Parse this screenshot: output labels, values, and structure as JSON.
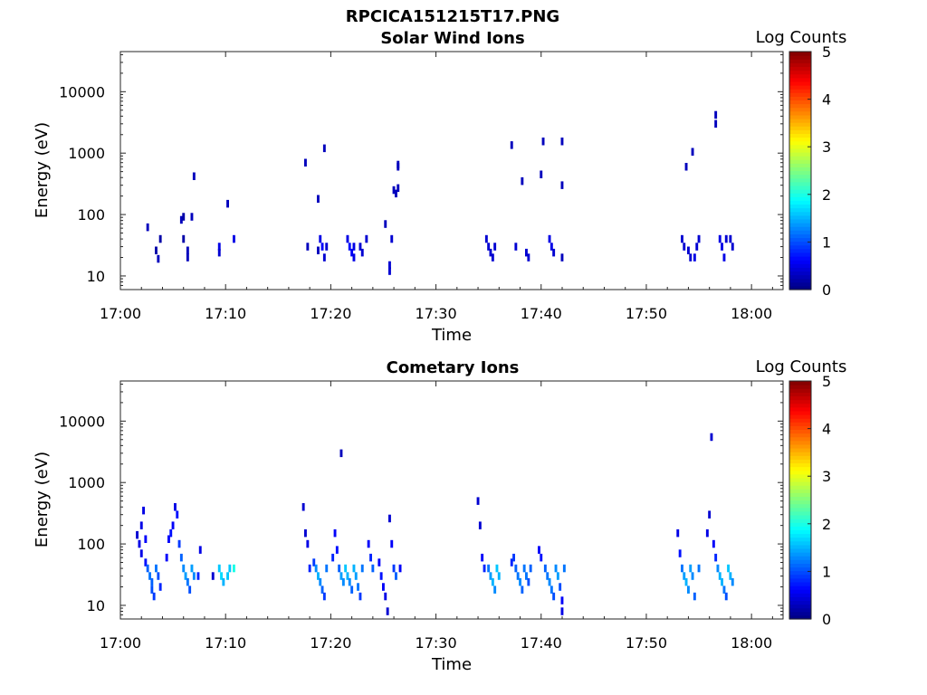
{
  "figure_title": "RPCICA151215T17.PNG",
  "chart_data": [
    {
      "type": "heatmap",
      "title": "Solar Wind Ions",
      "xlabel": "Time",
      "ylabel": "Energy (eV)",
      "x_ticks": [
        "17:00",
        "17:10",
        "17:20",
        "17:30",
        "17:40",
        "17:50",
        "18:00"
      ],
      "y_ticks": [
        "10",
        "100",
        "1000",
        "10000"
      ],
      "y_scale": "log",
      "xlim": [
        "17:00",
        "18:03"
      ],
      "ylim": [
        6,
        45000
      ],
      "colorbar": {
        "label": "Log Counts",
        "ticks": [
          "0",
          "1",
          "2",
          "3",
          "4",
          "5"
        ],
        "range": [
          0,
          5
        ],
        "colormap": "jet"
      },
      "cells": [
        [
          "17:02.6",
          62,
          0.3
        ],
        [
          "17:03.4",
          26,
          0.2
        ],
        [
          "17:03.6",
          19,
          0.3
        ],
        [
          "17:03.8",
          40,
          0.2
        ],
        [
          "17:05.8",
          82,
          0.3
        ],
        [
          "17:06.0",
          92,
          0.2
        ],
        [
          "17:06.0",
          40,
          0.2
        ],
        [
          "17:06.4",
          26,
          0.3
        ],
        [
          "17:06.4",
          20,
          0.3
        ],
        [
          "17:06.8",
          92,
          0.3
        ],
        [
          "17:07.0",
          420,
          0.3
        ],
        [
          "17:09.4",
          30,
          0.5
        ],
        [
          "17:09.4",
          24,
          0.4
        ],
        [
          "17:10.2",
          150,
          0.3
        ],
        [
          "17:10.8",
          40,
          0.5
        ],
        [
          "17:17.6",
          700,
          0.3
        ],
        [
          "17:17.8",
          30,
          0.3
        ],
        [
          "17:18.8",
          180,
          0.3
        ],
        [
          "17:18.8",
          26,
          0.3
        ],
        [
          "17:19.0",
          40,
          0.5
        ],
        [
          "17:19.2",
          30,
          0.6
        ],
        [
          "17:19.4",
          1200,
          0.3
        ],
        [
          "17:19.4",
          20,
          0.4
        ],
        [
          "17:19.6",
          30,
          0.4
        ],
        [
          "17:21.6",
          40,
          0.5
        ],
        [
          "17:21.8",
          30,
          0.7
        ],
        [
          "17:22.0",
          24,
          0.6
        ],
        [
          "17:22.2",
          30,
          0.5
        ],
        [
          "17:22.2",
          20,
          0.5
        ],
        [
          "17:22.8",
          30,
          0.4
        ],
        [
          "17:23.0",
          24,
          0.4
        ],
        [
          "17:23.4",
          40,
          0.4
        ],
        [
          "17:25.2",
          70,
          0.3
        ],
        [
          "17:25.6",
          15,
          0.4
        ],
        [
          "17:25.6",
          12,
          0.4
        ],
        [
          "17:25.8",
          40,
          0.4
        ],
        [
          "17:26.0",
          250,
          0.3
        ],
        [
          "17:26.2",
          220,
          0.3
        ],
        [
          "17:26.4",
          270,
          0.3
        ],
        [
          "17:26.4",
          650,
          0.3
        ],
        [
          "17:26.4",
          600,
          0.3
        ],
        [
          "17:34.8",
          40,
          0.4
        ],
        [
          "17:35.0",
          30,
          0.4
        ],
        [
          "17:35.2",
          24,
          0.4
        ],
        [
          "17:35.4",
          20,
          0.4
        ],
        [
          "17:35.6",
          30,
          0.4
        ],
        [
          "17:37.2",
          1350,
          0.3
        ],
        [
          "17:37.6",
          30,
          0.4
        ],
        [
          "17:38.2",
          350,
          0.3
        ],
        [
          "17:38.6",
          24,
          0.4
        ],
        [
          "17:38.8",
          20,
          0.4
        ],
        [
          "17:40.0",
          450,
          0.3
        ],
        [
          "17:40.2",
          1550,
          0.3
        ],
        [
          "17:40.8",
          40,
          0.5
        ],
        [
          "17:41.0",
          30,
          0.5
        ],
        [
          "17:41.2",
          24,
          0.4
        ],
        [
          "17:42.0",
          1550,
          0.3
        ],
        [
          "17:42.0",
          300,
          0.3
        ],
        [
          "17:42.0",
          20,
          0.3
        ],
        [
          "17:53.4",
          40,
          0.4
        ],
        [
          "17:53.6",
          30,
          0.4
        ],
        [
          "17:53.8",
          600,
          0.3
        ],
        [
          "17:54.0",
          26,
          0.4
        ],
        [
          "17:54.2",
          20,
          0.4
        ],
        [
          "17:54.4",
          1050,
          0.3
        ],
        [
          "17:54.6",
          20,
          0.5
        ],
        [
          "17:54.8",
          30,
          0.4
        ],
        [
          "17:55.0",
          40,
          0.4
        ],
        [
          "17:56.6",
          4200,
          0.3
        ],
        [
          "17:56.6",
          3000,
          0.3
        ],
        [
          "17:57.0",
          40,
          0.5
        ],
        [
          "17:57.2",
          30,
          0.5
        ],
        [
          "17:57.4",
          20,
          0.5
        ],
        [
          "17:57.6",
          40,
          0.4
        ],
        [
          "17:58.0",
          40,
          0.4
        ],
        [
          "17:58.2",
          30,
          0.4
        ]
      ]
    },
    {
      "type": "heatmap",
      "title": "Cometary Ions",
      "xlabel": "Time",
      "ylabel": "Energy (eV)",
      "x_ticks": [
        "17:00",
        "17:10",
        "17:20",
        "17:30",
        "17:40",
        "17:50",
        "18:00"
      ],
      "y_ticks": [
        "10",
        "100",
        "1000",
        "10000"
      ],
      "y_scale": "log",
      "xlim": [
        "17:00",
        "18:03"
      ],
      "ylim": [
        6,
        45000
      ],
      "colorbar": {
        "label": "Log Counts",
        "ticks": [
          "0",
          "1",
          "2",
          "3",
          "4",
          "5"
        ],
        "range": [
          0,
          5
        ],
        "colormap": "jet"
      },
      "cells": [
        [
          "17:01.6",
          140,
          0.4
        ],
        [
          "17:01.8",
          100,
          0.5
        ],
        [
          "17:02.0",
          200,
          0.5
        ],
        [
          "17:02.0",
          70,
          0.5
        ],
        [
          "17:02.2",
          350,
          0.5
        ],
        [
          "17:02.4",
          120,
          0.6
        ],
        [
          "17:02.4",
          50,
          0.7
        ],
        [
          "17:02.6",
          40,
          1.1
        ],
        [
          "17:02.8",
          30,
          1.2
        ],
        [
          "17:03.0",
          24,
          1.1
        ],
        [
          "17:03.0",
          18,
          1.0
        ],
        [
          "17:03.2",
          14,
          0.9
        ],
        [
          "17:03.4",
          40,
          1.2
        ],
        [
          "17:03.6",
          30,
          1.0
        ],
        [
          "17:03.8",
          20,
          0.8
        ],
        [
          "17:04.4",
          60,
          0.6
        ],
        [
          "17:04.6",
          120,
          0.6
        ],
        [
          "17:04.8",
          150,
          0.7
        ],
        [
          "17:05.0",
          200,
          0.6
        ],
        [
          "17:05.2",
          400,
          0.5
        ],
        [
          "17:05.4",
          300,
          0.7
        ],
        [
          "17:05.6",
          100,
          0.9
        ],
        [
          "17:05.8",
          60,
          1.1
        ],
        [
          "17:06.0",
          40,
          1.3
        ],
        [
          "17:06.2",
          30,
          1.4
        ],
        [
          "17:06.4",
          24,
          1.2
        ],
        [
          "17:06.6",
          18,
          1.0
        ],
        [
          "17:06.8",
          40,
          1.4
        ],
        [
          "17:07.0",
          30,
          1.3
        ],
        [
          "17:07.4",
          30,
          0.8
        ],
        [
          "17:07.6",
          80,
          0.5
        ],
        [
          "17:08.8",
          30,
          0.4
        ],
        [
          "17:09.4",
          40,
          1.6
        ],
        [
          "17:09.6",
          30,
          1.7
        ],
        [
          "17:09.8",
          24,
          1.5
        ],
        [
          "17:10.2",
          30,
          1.6
        ],
        [
          "17:10.4",
          40,
          1.6
        ],
        [
          "17:10.8",
          40,
          2.0
        ],
        [
          "17:17.4",
          400,
          0.4
        ],
        [
          "17:17.6",
          150,
          0.4
        ],
        [
          "17:17.8",
          100,
          0.5
        ],
        [
          "17:18.0",
          40,
          0.8
        ],
        [
          "17:18.4",
          50,
          0.9
        ],
        [
          "17:18.6",
          40,
          1.3
        ],
        [
          "17:18.8",
          30,
          1.5
        ],
        [
          "17:19.0",
          24,
          1.3
        ],
        [
          "17:19.2",
          18,
          1.1
        ],
        [
          "17:19.4",
          14,
          0.9
        ],
        [
          "17:19.6",
          40,
          1.2
        ],
        [
          "17:20.2",
          60,
          0.8
        ],
        [
          "17:20.4",
          150,
          0.6
        ],
        [
          "17:20.6",
          80,
          0.7
        ],
        [
          "17:20.8",
          40,
          1.1
        ],
        [
          "17:21.0",
          3000,
          0.3
        ],
        [
          "17:21.0",
          30,
          1.4
        ],
        [
          "17:21.2",
          24,
          1.3
        ],
        [
          "17:21.4",
          40,
          1.6
        ],
        [
          "17:21.6",
          30,
          1.5
        ],
        [
          "17:21.8",
          24,
          1.3
        ],
        [
          "17:22.0",
          18,
          1.1
        ],
        [
          "17:22.2",
          40,
          1.5
        ],
        [
          "17:22.4",
          30,
          1.4
        ],
        [
          "17:22.6",
          20,
          1.2
        ],
        [
          "17:22.8",
          14,
          0.9
        ],
        [
          "17:23.0",
          40,
          1.2
        ],
        [
          "17:23.6",
          100,
          0.6
        ],
        [
          "17:23.8",
          60,
          0.8
        ],
        [
          "17:24.0",
          40,
          1.1
        ],
        [
          "17:24.6",
          50,
          0.6
        ],
        [
          "17:24.8",
          30,
          0.7
        ],
        [
          "17:25.0",
          20,
          0.6
        ],
        [
          "17:25.2",
          14,
          0.5
        ],
        [
          "17:25.4",
          8,
          0.4
        ],
        [
          "17:25.6",
          260,
          0.4
        ],
        [
          "17:25.8",
          100,
          0.6
        ],
        [
          "17:26.0",
          40,
          0.9
        ],
        [
          "17:26.2",
          30,
          1.1
        ],
        [
          "17:26.6",
          40,
          0.6
        ],
        [
          "17:34.0",
          500,
          0.4
        ],
        [
          "17:34.2",
          200,
          0.4
        ],
        [
          "17:34.4",
          60,
          0.6
        ],
        [
          "17:34.6",
          40,
          0.8
        ],
        [
          "17:35.0",
          40,
          1.2
        ],
        [
          "17:35.2",
          30,
          1.4
        ],
        [
          "17:35.4",
          24,
          1.5
        ],
        [
          "17:35.6",
          18,
          1.3
        ],
        [
          "17:35.8",
          40,
          1.6
        ],
        [
          "17:36.0",
          30,
          1.5
        ],
        [
          "17:37.2",
          50,
          0.8
        ],
        [
          "17:37.4",
          60,
          0.9
        ],
        [
          "17:37.6",
          40,
          1.1
        ],
        [
          "17:37.8",
          30,
          1.2
        ],
        [
          "17:38.0",
          24,
          1.3
        ],
        [
          "17:38.2",
          18,
          1.1
        ],
        [
          "17:38.4",
          40,
          1.2
        ],
        [
          "17:38.6",
          30,
          1.2
        ],
        [
          "17:38.8",
          24,
          1.0
        ],
        [
          "17:39.0",
          40,
          1.1
        ],
        [
          "17:39.8",
          80,
          0.6
        ],
        [
          "17:40.0",
          60,
          0.7
        ],
        [
          "17:40.4",
          40,
          1.1
        ],
        [
          "17:40.6",
          30,
          1.2
        ],
        [
          "17:40.8",
          24,
          1.3
        ],
        [
          "17:41.0",
          18,
          1.2
        ],
        [
          "17:41.2",
          14,
          1.0
        ],
        [
          "17:41.4",
          40,
          1.3
        ],
        [
          "17:41.6",
          30,
          1.4
        ],
        [
          "17:41.8",
          20,
          1.0
        ],
        [
          "17:42.0",
          12,
          0.6
        ],
        [
          "17:42.0",
          8,
          0.5
        ],
        [
          "17:42.2",
          40,
          1.2
        ],
        [
          "17:53.0",
          150,
          0.5
        ],
        [
          "17:53.2",
          70,
          0.7
        ],
        [
          "17:53.4",
          40,
          1.2
        ],
        [
          "17:53.6",
          30,
          1.4
        ],
        [
          "17:53.8",
          24,
          1.5
        ],
        [
          "17:54.0",
          18,
          1.3
        ],
        [
          "17:54.2",
          40,
          1.4
        ],
        [
          "17:54.4",
          30,
          1.3
        ],
        [
          "17:54.6",
          14,
          1.1
        ],
        [
          "17:55.0",
          40,
          1.2
        ],
        [
          "17:55.8",
          150,
          0.5
        ],
        [
          "17:56.0",
          300,
          0.4
        ],
        [
          "17:56.2",
          5500,
          0.4
        ],
        [
          "17:56.4",
          100,
          0.6
        ],
        [
          "17:56.6",
          60,
          0.8
        ],
        [
          "17:56.8",
          40,
          1.3
        ],
        [
          "17:57.0",
          30,
          1.5
        ],
        [
          "17:57.2",
          24,
          1.5
        ],
        [
          "17:57.4",
          18,
          1.2
        ],
        [
          "17:57.6",
          14,
          1.0
        ],
        [
          "17:57.8",
          40,
          1.6
        ],
        [
          "17:58.0",
          30,
          1.5
        ],
        [
          "17:58.2",
          24,
          1.3
        ]
      ]
    }
  ]
}
